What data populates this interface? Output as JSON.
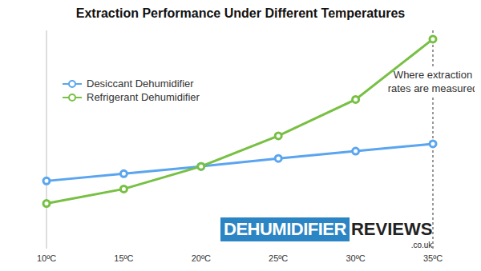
{
  "chart_data": {
    "type": "line",
    "title": "Extraction Performance Under Different Temperatures",
    "categories": [
      "10ºC",
      "15ºC",
      "20ºC",
      "25ºC",
      "30ºC",
      "35ºC"
    ],
    "series": [
      {
        "name": "Desiccant Dehumidifier",
        "color": "#5aa5ef",
        "marker": "circle",
        "values": [
          9.3,
          10.3,
          11.3,
          12.4,
          13.4,
          14.4
        ]
      },
      {
        "name": "Refrigerant Dehumidifier",
        "color": "#78c044",
        "marker": "circle",
        "values": [
          6.2,
          8.2,
          11.3,
          15.5,
          20.5,
          28.8
        ]
      }
    ],
    "ylim": [
      0,
      30
    ],
    "yticks": [],
    "tick_labels": "x",
    "grid": false,
    "legend": "upper-left",
    "annotation": {
      "x": "35ºC",
      "text": "Where extraction rates are measured"
    },
    "watermark": [
      "DEHUMIDIFIER",
      "REVIEWS",
      ".co.uk"
    ]
  }
}
